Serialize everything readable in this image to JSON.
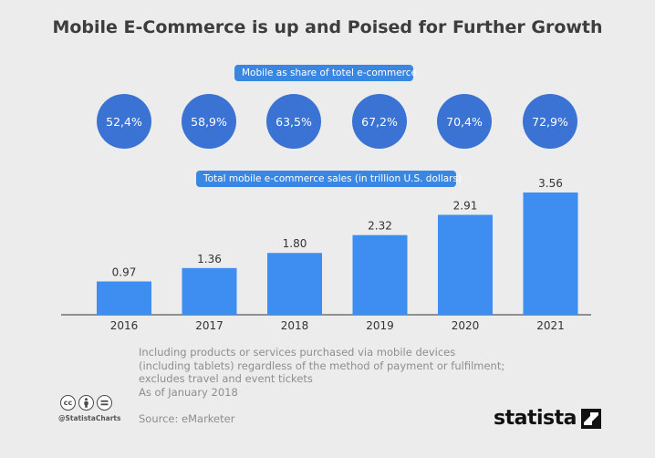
{
  "title": "Mobile E-Commerce is up and Poised for Further Growth",
  "share_label": "Mobile as share of totel e-commerce",
  "sales_label": "Total mobile e-commerce sales (in trillion U.S. dollars)",
  "shares": [
    "52,4%",
    "58,9%",
    "63,5%",
    "67,2%",
    "70,4%",
    "72,9%"
  ],
  "chart_data": {
    "type": "bar",
    "title": "Total mobile e-commerce sales (in trillion U.S. dollars)",
    "categories": [
      "2016",
      "2017",
      "2018",
      "2019",
      "2020",
      "2021"
    ],
    "values": [
      0.97,
      1.36,
      1.8,
      2.32,
      2.91,
      3.56
    ],
    "value_labels": [
      "0.97",
      "1.36",
      "1.80",
      "2.32",
      "2.91",
      "3.56"
    ],
    "xlabel": "",
    "ylabel": "",
    "ylim": [
      0,
      3.56
    ],
    "grid": false,
    "colors": {
      "bar": "#3d8ef0",
      "axis": "#333333",
      "label": "#333333"
    }
  },
  "footnote": {
    "lines": [
      "Including products or services purchased via mobile devices",
      "(including tablets) regardless of the method of payment or fulfilment;",
      "excludes travel and event tickets",
      "As of January 2018"
    ]
  },
  "source": "Source: eMarketer",
  "license": {
    "icons": [
      "cc-icon",
      "attribution-icon",
      "no-derivatives-icon"
    ],
    "handle": "@StatistaCharts"
  },
  "brand": "statista",
  "colors": {
    "background": "#ececec",
    "pill": "#3a87e2",
    "circle": "#3a73d4",
    "bar": "#3d8ef0"
  }
}
